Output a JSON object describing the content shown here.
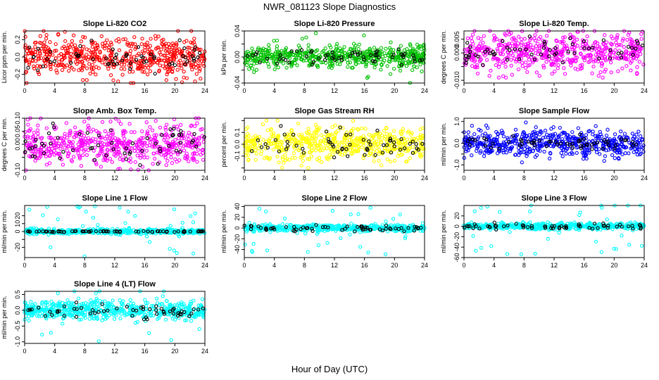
{
  "figure": {
    "title": "NWR_081123  Slope Diagnostics",
    "x_caption": "Hour of Day (UTC)"
  },
  "chart_data": [
    {
      "type": "scatter",
      "title": "Slope Li-820 CO2",
      "ylabel": "Licor ppm per min.",
      "xlabel": "",
      "xlim": [
        0,
        24
      ],
      "ylim": [
        -0.3,
        0.3
      ],
      "xticks": [
        0,
        4,
        8,
        12,
        16,
        20,
        24
      ],
      "yticks": [
        -0.2,
        0.0,
        0.2
      ],
      "ytick_labels": [
        "-0.2",
        "0.0",
        "0.2"
      ],
      "grid": false,
      "series": [
        {
          "color": "#ff0000",
          "count": 560,
          "spread": 0.11,
          "max_abs": 0.3,
          "outlier_rate": 0.0
        },
        {
          "color": "#000000",
          "count": 60,
          "spread": 0.08,
          "max_abs": 0.2,
          "outlier_rate": 0.0
        }
      ]
    },
    {
      "type": "scatter",
      "title": "Slope Li-820 Pressure",
      "ylabel": "kPa per min.",
      "xlabel": "",
      "xlim": [
        0,
        24
      ],
      "ylim": [
        -0.04,
        0.04
      ],
      "xticks": [
        0,
        4,
        8,
        12,
        16,
        20,
        24
      ],
      "yticks": [
        -0.04,
        -0.02,
        0.0,
        0.02,
        0.04
      ],
      "ytick_labels": [
        "-0.04",
        "",
        "0.00",
        "",
        "0.04"
      ],
      "grid": false,
      "series": [
        {
          "color": "#00c000",
          "count": 560,
          "spread": 0.008,
          "max_abs": 0.04,
          "outlier_rate": 0.06
        },
        {
          "color": "#000000",
          "count": 60,
          "spread": 0.006,
          "max_abs": 0.02,
          "outlier_rate": 0.0
        }
      ]
    },
    {
      "type": "scatter",
      "title": "Slope Li-820 Temp.",
      "ylabel": "degrees C per min.",
      "xlabel": "",
      "xlim": [
        0,
        24
      ],
      "ylim": [
        -0.011,
        0.008
      ],
      "xticks": [
        0,
        4,
        8,
        12,
        16,
        20,
        24
      ],
      "yticks": [
        -0.01,
        -0.005,
        0.0,
        0.005
      ],
      "ytick_labels": [
        "-0.010",
        "",
        "0.000",
        "0.005"
      ],
      "grid": false,
      "series": [
        {
          "color": "#ff00ff",
          "count": 560,
          "spread": 0.0035,
          "max_abs": 0.009,
          "outlier_rate": 0.0
        },
        {
          "color": "#000000",
          "count": 60,
          "spread": 0.0025,
          "max_abs": 0.006,
          "outlier_rate": 0.0
        }
      ]
    },
    {
      "type": "scatter",
      "title": "Slope Amb. Box Temp.",
      "ylabel": "degrees C per min.",
      "xlabel": "",
      "xlim": [
        0,
        24
      ],
      "ylim": [
        -0.1,
        0.1
      ],
      "xticks": [
        0,
        4,
        8,
        12,
        16,
        20,
        24
      ],
      "yticks": [
        -0.1,
        -0.05,
        0.0,
        0.05,
        0.1
      ],
      "ytick_labels": [
        "-0.10",
        "",
        "0.00",
        "0.05",
        "0.10"
      ],
      "grid": false,
      "series": [
        {
          "color": "#ff00ff",
          "count": 560,
          "spread": 0.04,
          "max_abs": 0.1,
          "outlier_rate": 0.0
        },
        {
          "color": "#000000",
          "count": 60,
          "spread": 0.035,
          "max_abs": 0.08,
          "outlier_rate": 0.0
        }
      ]
    },
    {
      "type": "scatter",
      "title": "Slope Gas Stream RH",
      "ylabel": "percent per min.",
      "xlabel": "",
      "xlim": [
        0,
        24
      ],
      "ylim": [
        -0.22,
        0.22
      ],
      "xticks": [
        0,
        4,
        8,
        12,
        16,
        20,
        24
      ],
      "yticks": [
        -0.2,
        -0.1,
        0.0,
        0.1,
        0.2
      ],
      "ytick_labels": [
        "",
        "-0.1",
        "0.0",
        "0.1",
        ""
      ],
      "grid": false,
      "series": [
        {
          "color": "#ffff00",
          "count": 560,
          "spread": 0.07,
          "max_abs": 0.2,
          "outlier_rate": 0.0
        },
        {
          "color": "#000000",
          "count": 60,
          "spread": 0.06,
          "max_abs": 0.17,
          "outlier_rate": 0.0
        }
      ]
    },
    {
      "type": "scatter",
      "title": "Slope Sample Flow",
      "ylabel": "ml/min per min.",
      "xlabel": "",
      "xlim": [
        0,
        24
      ],
      "ylim": [
        -1.25,
        1.15
      ],
      "xticks": [
        0,
        4,
        8,
        12,
        16,
        20,
        24
      ],
      "yticks": [
        -1.0,
        -0.5,
        0.0,
        0.5,
        1.0
      ],
      "ytick_labels": [
        "-1.0",
        "",
        "0.0",
        "",
        "1.0"
      ],
      "grid": false,
      "series": [
        {
          "color": "#0000ff",
          "count": 560,
          "spread": 0.3,
          "max_abs": 1.1,
          "outlier_rate": 0.0
        },
        {
          "color": "#000000",
          "count": 60,
          "spread": 0.15,
          "max_abs": 0.4,
          "outlier_rate": 0.0
        }
      ]
    },
    {
      "type": "scatter",
      "title": "Slope Line 1 Flow",
      "ylabel": "ml/min per min.",
      "xlabel": "",
      "xlim": [
        0,
        24
      ],
      "ylim": [
        -33,
        33
      ],
      "xticks": [
        0,
        4,
        8,
        12,
        16,
        20,
        24
      ],
      "yticks": [
        -20,
        -10,
        0,
        10,
        20
      ],
      "ytick_labels": [
        "-20",
        "",
        "0",
        "10",
        "20"
      ],
      "grid": false,
      "series": [
        {
          "color": "#00ffff",
          "count": 520,
          "spread": 1.5,
          "max_abs": 32,
          "outlier_rate": 0.08
        },
        {
          "color": "#000000",
          "count": 70,
          "spread": 0.4,
          "max_abs": 2,
          "outlier_rate": 0.0
        }
      ]
    },
    {
      "type": "scatter",
      "title": "Slope Line 2 Flow",
      "ylabel": "ml/min per min.",
      "xlabel": "",
      "xlim": [
        0,
        24
      ],
      "ylim": [
        -55,
        42
      ],
      "xticks": [
        0,
        4,
        8,
        12,
        16,
        20,
        24
      ],
      "yticks": [
        -40,
        -20,
        0,
        20,
        40
      ],
      "ytick_labels": [
        "-40",
        "-20",
        "0",
        "20",
        "40"
      ],
      "grid": false,
      "series": [
        {
          "color": "#00ffff",
          "count": 520,
          "spread": 3,
          "max_abs": 50,
          "outlier_rate": 0.07
        },
        {
          "color": "#000000",
          "count": 60,
          "spread": 3,
          "max_abs": 25,
          "outlier_rate": 0.0
        }
      ]
    },
    {
      "type": "scatter",
      "title": "Slope Line 3 Flow",
      "ylabel": "ml/min per min.",
      "xlabel": "",
      "xlim": [
        0,
        24
      ],
      "ylim": [
        -60,
        40
      ],
      "xticks": [
        0,
        4,
        8,
        12,
        16,
        20,
        24
      ],
      "yticks": [
        -60,
        -40,
        -20,
        0,
        20
      ],
      "ytick_labels": [
        "-60",
        "-40",
        "-20",
        "0",
        "20"
      ],
      "grid": false,
      "series": [
        {
          "color": "#00ffff",
          "count": 520,
          "spread": 3,
          "max_abs": 55,
          "outlier_rate": 0.07
        },
        {
          "color": "#000000",
          "count": 60,
          "spread": 3,
          "max_abs": 25,
          "outlier_rate": 0.0
        }
      ]
    },
    {
      "type": "scatter",
      "title": "Slope Line 4 (LT) Flow",
      "ylabel": "ml/min per min.",
      "xlabel": "",
      "xlim": [
        0,
        24
      ],
      "ylim": [
        -1.05,
        0.6
      ],
      "xticks": [
        0,
        4,
        8,
        12,
        16,
        20,
        24
      ],
      "yticks": [
        -1.0,
        -0.5,
        0.0,
        0.5
      ],
      "ytick_labels": [
        "-1.0",
        "-0.5",
        "0.0",
        "0.5"
      ],
      "grid": false,
      "series": [
        {
          "color": "#00ffff",
          "count": 560,
          "spread": 0.15,
          "max_abs": 1.0,
          "outlier_rate": 0.02
        },
        {
          "color": "#000000",
          "count": 60,
          "spread": 0.12,
          "max_abs": 0.35,
          "outlier_rate": 0.0
        }
      ]
    }
  ]
}
